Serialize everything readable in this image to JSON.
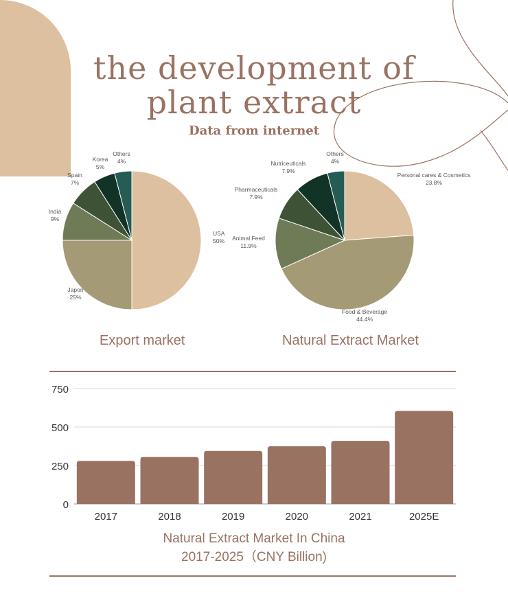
{
  "title_line1": "the development of",
  "title_line2": "plant extract",
  "subtitle": "Data from internet",
  "chart_data": [
    {
      "type": "pie",
      "title": "Export market",
      "slices": [
        {
          "label": "USA",
          "value": 50,
          "value_label": "50%",
          "color": "#dcc0a0"
        },
        {
          "label": "Japon",
          "value": 25,
          "value_label": "25%",
          "color": "#a49a76"
        },
        {
          "label": "India",
          "value": 9,
          "value_label": "9%",
          "color": "#6f7b56"
        },
        {
          "label": "Spain",
          "value": 7,
          "value_label": "7%",
          "color": "#3e5236"
        },
        {
          "label": "Korea",
          "value": 5,
          "value_label": "5%",
          "color": "#123426"
        },
        {
          "label": "Others",
          "value": 4,
          "value_label": "4%",
          "color": "#255c54"
        }
      ]
    },
    {
      "type": "pie",
      "title": "Natural Extract Market",
      "slices": [
        {
          "label": "Personal cares & Cosmetics",
          "value": 23.8,
          "value_label": "23.8%",
          "color": "#dcc0a0"
        },
        {
          "label": "Food & Beverage",
          "value": 44.4,
          "value_label": "44.4%",
          "color": "#a49a76"
        },
        {
          "label": "Animal Feed",
          "value": 11.9,
          "value_label": "11.9%",
          "color": "#6f7b56"
        },
        {
          "label": "Pharmaceuticals",
          "value": 7.9,
          "value_label": "7.9%",
          "color": "#3e5236"
        },
        {
          "label": "Nutriceuticals",
          "value": 7.9,
          "value_label": "7.9%",
          "color": "#123426"
        },
        {
          "label": "Others",
          "value": 4,
          "value_label": "4%",
          "color": "#255c54"
        }
      ]
    },
    {
      "type": "bar",
      "title_line1": "Natural Extract Market In China",
      "title_line2": "2017-2025（CNY Billion)",
      "categories": [
        "2017",
        "2018",
        "2019",
        "2020",
        "2021",
        "2025E"
      ],
      "values": [
        280,
        305,
        345,
        375,
        410,
        605
      ],
      "ylim": [
        0,
        750
      ],
      "yticks": [
        "0",
        "250",
        "500",
        "750"
      ],
      "grid": true,
      "color": "#9a7262"
    }
  ]
}
